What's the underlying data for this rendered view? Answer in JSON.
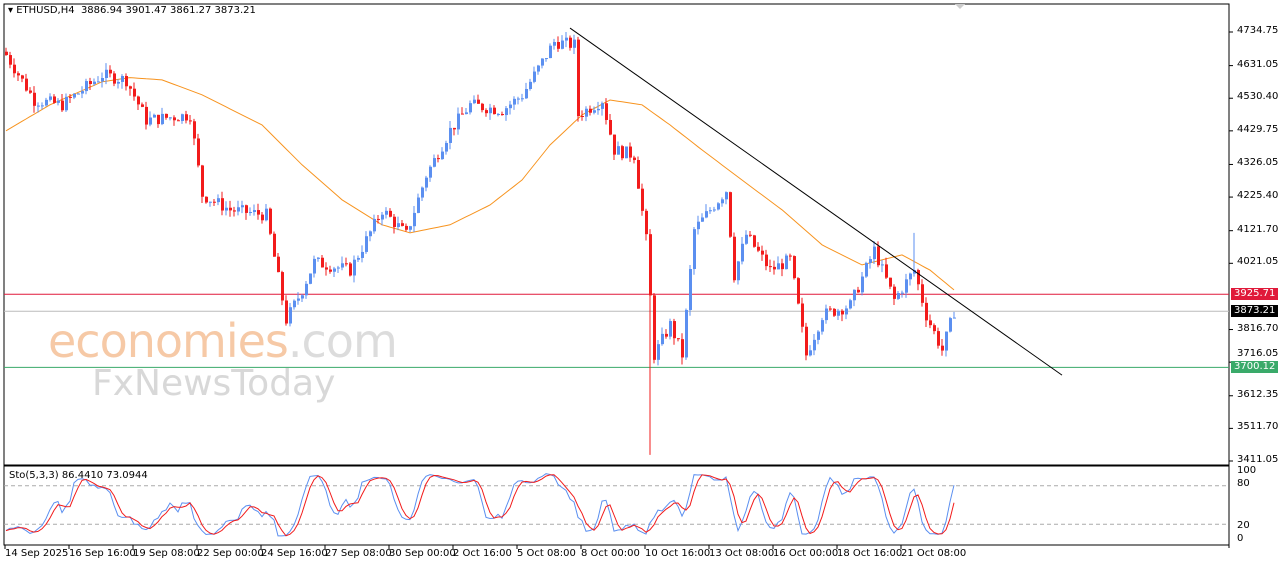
{
  "header": {
    "symbol": "ETHUSD,H4",
    "ohlc": "3886.94 3901.47 3861.27 3873.21"
  },
  "watermark": {
    "brand": "economies",
    "domain": ".com",
    "sub": "FxNewsToday"
  },
  "price_tags": [
    {
      "value": "3925.71",
      "color": "#e0193a"
    },
    {
      "value": "3873.21",
      "color": "#000000"
    },
    {
      "value": "3700.12",
      "color": "#3aaa6a"
    }
  ],
  "indicator": {
    "label": "Sto(5,3,3) 86.4410 73.0944",
    "levels": [
      "100",
      "80",
      "20",
      "0"
    ]
  },
  "chart_data": {
    "type": "candlestick",
    "title": "ETHUSD,H4",
    "ylim": [
      3411.05,
      4734.75
    ],
    "y_ticks": [
      "4734.75",
      "4631.05",
      "4530.40",
      "4429.75",
      "4326.05",
      "4225.40",
      "4121.70",
      "4021.05",
      "3816.70",
      "3716.05",
      "3612.35",
      "3511.70",
      "3411.05"
    ],
    "x_ticks": [
      "14 Sep 2025",
      "16 Sep 16:00",
      "19 Sep 08:00",
      "22 Sep 00:00",
      "24 Sep 16:00",
      "27 Sep 08:00",
      "30 Sep 00:00",
      "2 Oct 16:00",
      "5 Oct 08:00",
      "8 Oct 00:00",
      "10 Oct 16:00",
      "13 Oct 08:00",
      "16 Oct 00:00",
      "18 Oct 16:00",
      "21 Oct 08:00"
    ],
    "candles_per_tick": 16,
    "close_path": [
      [
        0,
        4664
      ],
      [
        7,
        4525
      ],
      [
        14,
        4510
      ],
      [
        24,
        4602
      ],
      [
        30,
        4587
      ],
      [
        35,
        4463
      ],
      [
        46,
        4479
      ],
      [
        49,
        4232
      ],
      [
        56,
        4186
      ],
      [
        65,
        4170
      ],
      [
        70,
        3846
      ],
      [
        74,
        3939
      ],
      [
        77,
        4025
      ],
      [
        86,
        4000
      ],
      [
        94,
        4186
      ],
      [
        100,
        4109
      ],
      [
        105,
        4293
      ],
      [
        111,
        4432
      ],
      [
        116,
        4510
      ],
      [
        124,
        4494
      ],
      [
        129,
        4540
      ],
      [
        137,
        4704
      ],
      [
        142,
        4695
      ],
      [
        143,
        4479
      ],
      [
        149,
        4525
      ],
      [
        152,
        4371
      ],
      [
        157,
        4355
      ],
      [
        160,
        4093
      ],
      [
        162,
        3738
      ],
      [
        166,
        3831
      ],
      [
        169,
        3738
      ],
      [
        172,
        4124
      ],
      [
        176,
        4186
      ],
      [
        180,
        4247
      ],
      [
        182,
        3985
      ],
      [
        185,
        4109
      ],
      [
        191,
        4000
      ],
      [
        196,
        4032
      ],
      [
        200,
        3738
      ],
      [
        204,
        3861
      ],
      [
        211,
        3892
      ],
      [
        217,
        4062
      ],
      [
        222,
        3908
      ],
      [
        227,
        4000
      ],
      [
        230,
        3861
      ],
      [
        234,
        3753
      ],
      [
        237,
        3873
      ]
    ],
    "ma_path": [
      [
        0,
        4430
      ],
      [
        11,
        4510
      ],
      [
        24,
        4581
      ],
      [
        31,
        4594
      ],
      [
        39,
        4587
      ],
      [
        49,
        4541
      ],
      [
        64,
        4448
      ],
      [
        74,
        4325
      ],
      [
        84,
        4217
      ],
      [
        94,
        4140
      ],
      [
        101,
        4115
      ],
      [
        111,
        4140
      ],
      [
        121,
        4201
      ],
      [
        129,
        4278
      ],
      [
        136,
        4386
      ],
      [
        144,
        4479
      ],
      [
        151,
        4525
      ],
      [
        159,
        4510
      ],
      [
        166,
        4448
      ],
      [
        174,
        4371
      ],
      [
        184,
        4278
      ],
      [
        194,
        4186
      ],
      [
        204,
        4078
      ],
      [
        214,
        4016
      ],
      [
        224,
        4047
      ],
      [
        231,
        4000
      ],
      [
        237,
        3939
      ]
    ],
    "trendline": [
      [
        141,
        4747
      ],
      [
        264,
        3676
      ]
    ],
    "hlines": [
      3925.71,
      3873.21,
      3700.12
    ],
    "wick_extremes": [
      [
        161,
        3430
      ],
      [
        227,
        4115
      ]
    ]
  }
}
